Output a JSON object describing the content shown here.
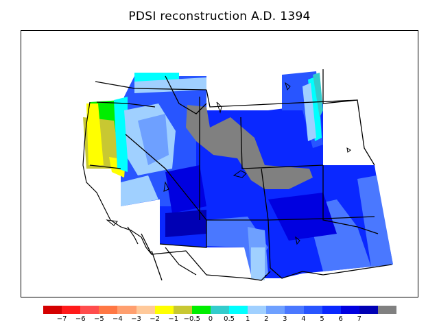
{
  "title": "PDSI reconstruction A.D. 1394",
  "legend": {
    "colors": [
      "#d40000",
      "#ff1a1a",
      "#ff4d4d",
      "#ff7744",
      "#ff9f6f",
      "#ffc99a",
      "#ffff00",
      "#c8c832",
      "#00ee00",
      "#33cccc",
      "#00ffff",
      "#a0d0ff",
      "#6ea0ff",
      "#4a78ff",
      "#2855ff",
      "#0a28ff",
      "#0000e0",
      "#0000b4",
      "#808080"
    ],
    "ticks": [
      "−7",
      "−6",
      "−5",
      "−4",
      "−3",
      "−2",
      "−1",
      "−0.5",
      "0",
      "0.5",
      "1",
      "2",
      "3",
      "4",
      "5",
      "6",
      "7"
    ]
  },
  "colors": {
    "no_data": "#808080",
    "border": "#000000"
  }
}
